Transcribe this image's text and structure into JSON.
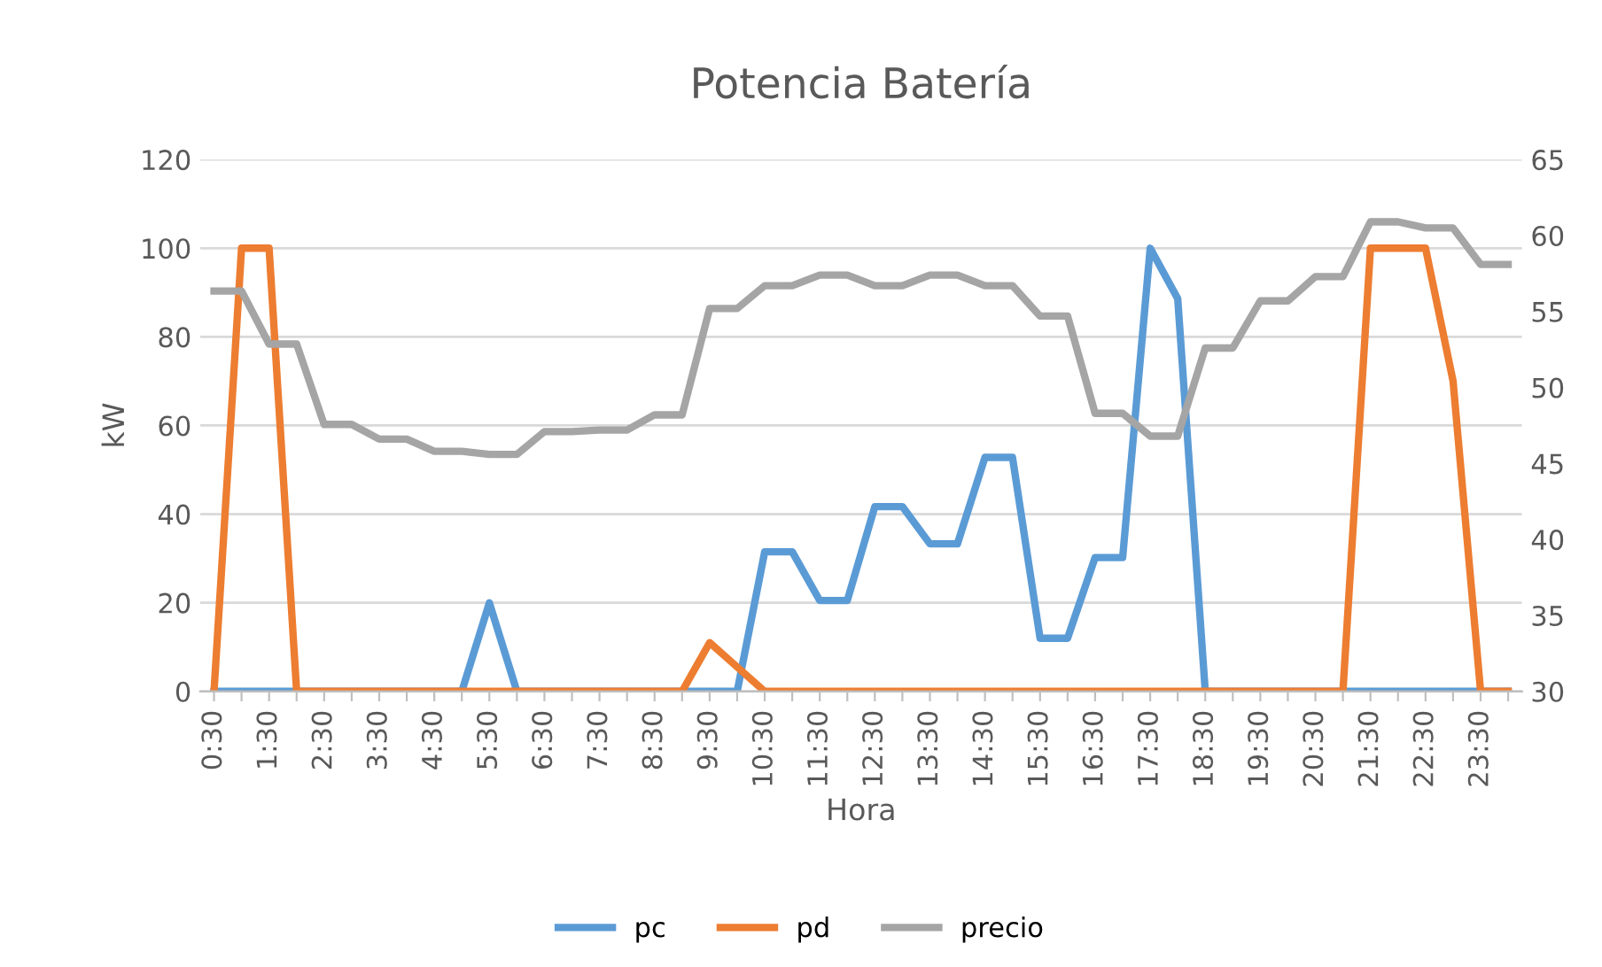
{
  "chart_data": {
    "type": "line",
    "title": "Potencia Batería",
    "xlabel": "Hora",
    "ylabel": "kW",
    "categories": [
      "0:30",
      null,
      "1:30",
      null,
      "2:30",
      null,
      "3:30",
      null,
      "4:30",
      null,
      "5:30",
      null,
      "6:30",
      null,
      "7:30",
      null,
      "8:30",
      null,
      "9:30",
      null,
      "10:30",
      null,
      "11:30",
      null,
      "12:30",
      null,
      "13:30",
      null,
      "14:30",
      null,
      "15:30",
      null,
      "16:30",
      null,
      "17:30",
      null,
      "18:30",
      null,
      "19:30",
      null,
      "20:30",
      null,
      "21:30",
      null,
      "22:30",
      null,
      "23:30",
      null
    ],
    "series": [
      {
        "name": "pc",
        "color": "#5b9bd5",
        "values": [
          0,
          0,
          0,
          0,
          0,
          0,
          0,
          0,
          0,
          0,
          20,
          0,
          0,
          0,
          0,
          0,
          0,
          0,
          0,
          0,
          31.5,
          31.5,
          20.5,
          20.5,
          41.7,
          41.7,
          33.3,
          33.3,
          52.8,
          52.8,
          12,
          12,
          30.2,
          30.2,
          100,
          88.6,
          0,
          0,
          0,
          0,
          0,
          0,
          0,
          0,
          0,
          0,
          0,
          0
        ]
      },
      {
        "name": "pd",
        "color": "#ed7d31",
        "values": [
          0,
          100,
          100,
          0,
          0,
          0,
          0,
          0,
          0,
          0,
          0,
          0,
          0,
          0,
          0,
          0,
          0,
          0,
          11,
          5.5,
          0,
          0,
          0,
          0,
          0,
          0,
          0,
          0,
          0,
          0,
          0,
          0,
          0,
          0,
          0,
          0,
          0,
          0,
          0,
          0,
          0,
          0,
          100,
          100,
          100,
          70,
          0,
          0
        ]
      },
      {
        "name": "precio",
        "color": "#a5a5a5",
        "axis": "y2",
        "values": [
          56.35,
          56.35,
          52.86,
          52.86,
          47.57,
          47.57,
          46.6,
          46.6,
          45.8,
          45.8,
          45.6,
          45.6,
          47.1,
          47.1,
          47.2,
          47.2,
          48.2,
          48.2,
          55.2,
          55.2,
          56.7,
          56.7,
          57.4,
          57.4,
          56.7,
          56.7,
          57.4,
          57.4,
          56.7,
          56.7,
          54.7,
          54.7,
          48.3,
          48.3,
          46.8,
          46.8,
          52.6,
          52.6,
          55.7,
          55.7,
          57.3,
          57.3,
          60.9,
          60.9,
          60.5,
          60.5,
          58.1,
          58.1
        ]
      }
    ],
    "ylim": [
      0,
      120
    ],
    "yticks": [
      0,
      20,
      40,
      60,
      80,
      100,
      120
    ],
    "y2lim": [
      30,
      65
    ],
    "y2ticks": [
      30,
      35,
      40,
      45,
      50,
      55,
      60,
      65
    ],
    "grid": "y",
    "legend": "bottom",
    "marker": "none",
    "line_style": "solid"
  }
}
